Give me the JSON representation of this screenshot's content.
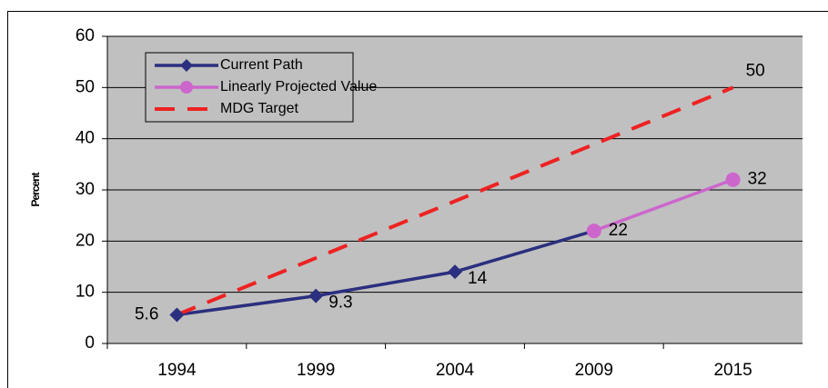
{
  "chart_data": {
    "type": "line",
    "y_label": "Percent",
    "categories": [
      "1994",
      "1999",
      "2004",
      "2009",
      "2015"
    ],
    "series": [
      {
        "name": "Current Path",
        "color": "#2b2f7f",
        "marker": "diamond",
        "dashed": false,
        "values": [
          5.6,
          9.3,
          14,
          22,
          null
        ],
        "value_labels": [
          "5.6",
          "9.3",
          "14",
          "22",
          null
        ]
      },
      {
        "name": "Linearly Projected Value",
        "color": "#cc66cc",
        "marker": "circle",
        "dashed": false,
        "values": [
          null,
          null,
          null,
          22,
          32
        ],
        "value_labels": [
          null,
          null,
          null,
          null,
          "32"
        ]
      },
      {
        "name": "MDG Target",
        "color": "#ee2222",
        "marker": "none",
        "dashed": true,
        "values": [
          5.6,
          16.7,
          27.8,
          38.9,
          50
        ],
        "value_labels": [
          null,
          null,
          null,
          null,
          "50"
        ]
      }
    ],
    "ylim": [
      0,
      60
    ],
    "yticks": [
      0,
      10,
      20,
      30,
      40,
      50,
      60
    ],
    "grid": true,
    "legend": "upper left"
  }
}
